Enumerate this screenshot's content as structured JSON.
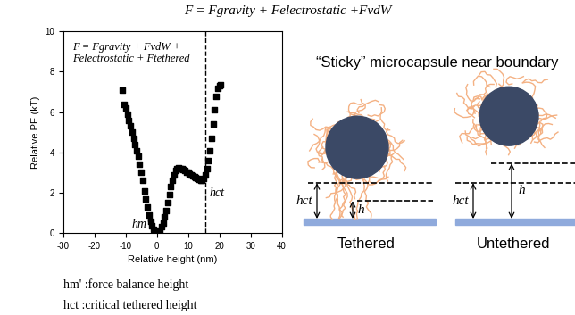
{
  "header": {
    "formula": "F = Fgravity + Felectrostatic +FvdW"
  },
  "chart_data": {
    "type": "scatter",
    "x": [
      -11.0,
      -10.5,
      -10.0,
      -9.5,
      -9.0,
      -8.5,
      -8.0,
      -7.5,
      -7.0,
      -6.5,
      -6.0,
      -5.5,
      -5.0,
      -4.5,
      -4.0,
      -3.5,
      -3.0,
      -2.5,
      -2.0,
      -1.5,
      -1.0,
      -0.5,
      0.0,
      0.5,
      1.0,
      1.5,
      2.0,
      2.5,
      3.0,
      3.5,
      4.0,
      4.5,
      5.0,
      5.5,
      6.0,
      6.5,
      7.0,
      7.5,
      8.0,
      8.5,
      9.0,
      9.5,
      10.0,
      10.5,
      11.0,
      11.5,
      12.0,
      12.5,
      13.0,
      13.5,
      14.0,
      14.5,
      15.0,
      15.5,
      16.0,
      16.5,
      17.0,
      17.5,
      18.0,
      18.5,
      19.0,
      19.5,
      20.0,
      20.5
    ],
    "values": [
      7.1,
      6.4,
      6.2,
      5.9,
      5.6,
      5.3,
      5.0,
      4.7,
      4.4,
      4.1,
      3.8,
      3.4,
      3.0,
      2.6,
      2.1,
      1.7,
      1.3,
      0.9,
      0.6,
      0.35,
      0.2,
      0.08,
      0.0,
      0.05,
      0.15,
      0.3,
      0.5,
      0.8,
      1.1,
      1.5,
      1.9,
      2.3,
      2.6,
      2.9,
      3.1,
      3.2,
      3.25,
      3.2,
      3.2,
      3.15,
      3.1,
      3.0,
      3.0,
      2.95,
      2.9,
      2.85,
      2.8,
      2.75,
      2.7,
      2.65,
      2.6,
      2.6,
      2.7,
      2.9,
      3.2,
      3.6,
      4.1,
      4.7,
      5.4,
      6.1,
      6.8,
      7.2,
      7.3,
      7.35
    ],
    "color": "#000000",
    "marker": "square",
    "x_label": "Relative height (nm)",
    "y_label": "Relative PE (kT)",
    "xlim": [
      -30,
      40
    ],
    "xticks": [
      -30,
      -20,
      -10,
      0,
      10,
      20,
      30,
      40
    ],
    "ylim": [
      0,
      10
    ],
    "yticks": [
      0,
      2,
      4,
      6,
      8,
      10
    ],
    "formula": "F = Fgravity + FvdW +\nFelectrostatic + Ftethered",
    "point_label": {
      "text": "hm'",
      "x": 0,
      "y": 0
    },
    "vline": {
      "x": 15.5,
      "label": "hct",
      "line_style": "dashed"
    }
  },
  "notes": [
    "hm' :force balance height",
    "hct :critical tethered height"
  ],
  "diagram": {
    "title": "“Sticky” microcapsule near boundary",
    "panels": [
      {
        "label": "Tethered",
        "hct": "hct",
        "h": "h"
      },
      {
        "label": "Untethered",
        "hct": "hct",
        "h": "h"
      }
    ]
  }
}
